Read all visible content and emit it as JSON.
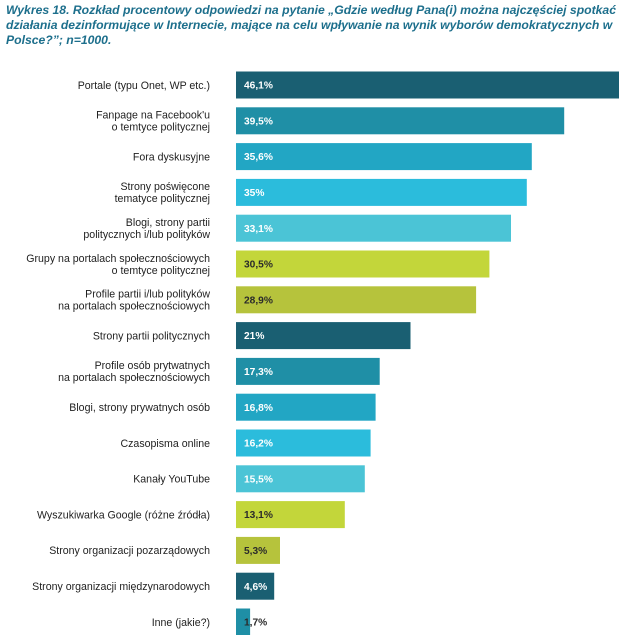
{
  "chart_data": {
    "type": "bar",
    "orientation": "horizontal",
    "title": "Wykres 18. Rozkład procentowy odpowiedzi na pytanie „Gdzie według Pana(i) można najczęściej spotkać działania dezinformujące w Internecie, mające na celu wpływanie na wynik wyborów demokratycznych w Polsce?”; n=1000.",
    "xlabel": "",
    "ylabel": "",
    "xlim": [
      0,
      46.1
    ],
    "grid": false,
    "legend": "none",
    "categories": [
      [
        "Portale (typu Onet, WP etc.)"
      ],
      [
        "Fanpage na Facebook'u",
        "o temtyce politycznej"
      ],
      [
        "Fora dyskusyjne"
      ],
      [
        "Strony poświęcone",
        "tematyce politycznej"
      ],
      [
        "Blogi, strony partii",
        "politycznych i/lub polityków"
      ],
      [
        "Grupy na portalach społecznościowych",
        "o temtyce politycznej"
      ],
      [
        "Profile partii i/lub polityków",
        "na portalach społecznościowych"
      ],
      [
        "Strony partii politycznych"
      ],
      [
        "Profile osób prytwatnych",
        "na portalach społecznościowych"
      ],
      [
        "Blogi, strony prywatnych osób"
      ],
      [
        "Czasopisma online"
      ],
      [
        "Kanały YouTube"
      ],
      [
        "Wyszukiwarka Google (różne źródła)"
      ],
      [
        "Strony organizacji pozarządowych"
      ],
      [
        "Strony organizacji międzynarodowych"
      ],
      [
        "Inne (jakie?)"
      ]
    ],
    "values": [
      46.1,
      39.5,
      35.6,
      35,
      33.1,
      30.5,
      28.9,
      21,
      17.3,
      16.8,
      16.2,
      15.5,
      13.1,
      5.3,
      4.6,
      1.7
    ],
    "value_labels": [
      "46,1%",
      "39,5%",
      "35,6%",
      "35%",
      "33,1%",
      "30,5%",
      "28,9%",
      "21%",
      "17,3%",
      "16,8%",
      "16,2%",
      "15,5%",
      "13,1%",
      "5,3%",
      "4,6%",
      "1,7%"
    ],
    "colors": [
      "#1a5f72",
      "#1f8fa6",
      "#22a6c4",
      "#2bbcdc",
      "#4bc4d6",
      "#c3d63a",
      "#b6c33c",
      "#1a5f72",
      "#1f8fa6",
      "#22a6c4",
      "#2bbcdc",
      "#4bc4d6",
      "#c3d63a",
      "#b6c33c",
      "#1a5f72",
      "#1f8fa6"
    ],
    "label_colors": [
      "#ffffff",
      "#ffffff",
      "#ffffff",
      "#ffffff",
      "#ffffff",
      "#2b2b2b",
      "#2b2b2b",
      "#ffffff",
      "#ffffff",
      "#ffffff",
      "#ffffff",
      "#ffffff",
      "#2b2b2b",
      "#2b2b2b",
      "#ffffff",
      "#2b2b2b"
    ]
  }
}
